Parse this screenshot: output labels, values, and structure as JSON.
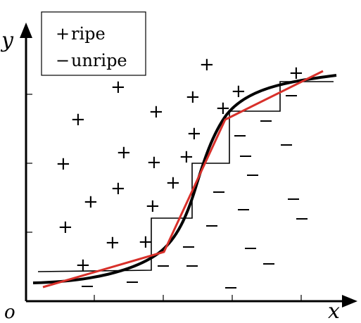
{
  "axes": {
    "x_label": "x",
    "y_label": "y",
    "origin_label": "o"
  },
  "legend": {
    "items": [
      {
        "symbol": "+",
        "label": "ripe"
      },
      {
        "symbol": "−",
        "label": "unripe"
      }
    ]
  },
  "curves": {
    "smooth_color": "#000000",
    "piecewise_linear_color": "#d8302a",
    "step_color": "#000000"
  }
}
